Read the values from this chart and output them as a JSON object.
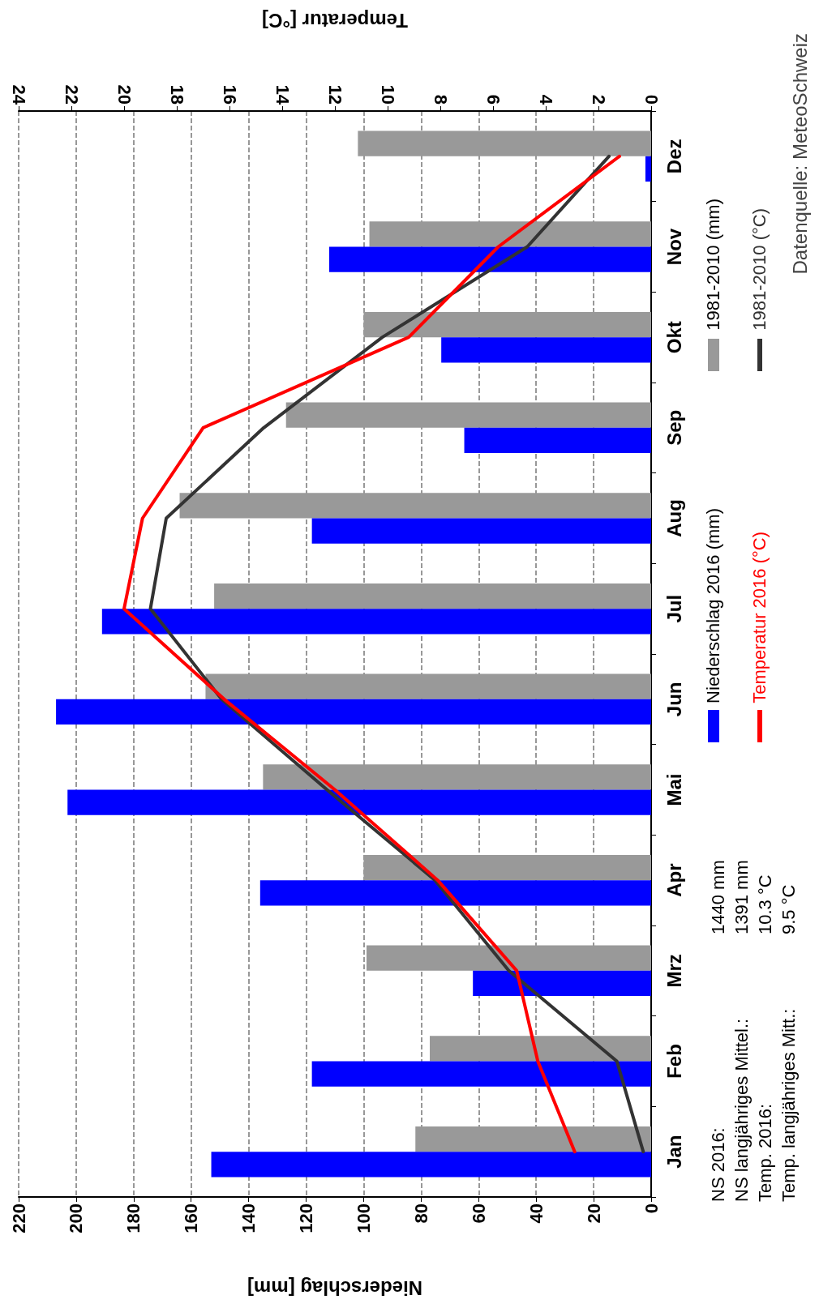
{
  "chart_data": {
    "type": "bar",
    "orientation": "horizontal",
    "categories": [
      "Dez",
      "Nov",
      "Okt",
      "Sep",
      "Aug",
      "Jul",
      "Jun",
      "Mai",
      "Apr",
      "Mrz",
      "Feb",
      "Jan"
    ],
    "xlabel": "Niederschlag [mm]",
    "x2label": "Temperatur [°C]",
    "xlim": [
      220,
      0
    ],
    "xticks": [
      0,
      20,
      40,
      60,
      80,
      100,
      120,
      140,
      160,
      180,
      200,
      220
    ],
    "x2lim": [
      24,
      0
    ],
    "x2ticks": [
      0,
      2,
      4,
      6,
      8,
      10,
      12,
      14,
      16,
      18,
      20,
      22,
      24
    ],
    "grid": "x",
    "legend": "right",
    "marker": "none",
    "line_style": "solid",
    "annotations": [
      "NS 2016:",
      "1440 mm",
      "NS langjähriges Mittel.:",
      "1391 mm",
      "Temp. 2016:",
      "10.3 °C",
      "Temp. langjähriges Mitt.:",
      "9.5 °C",
      "Datenquelle: MeteoSchweiz"
    ],
    "series": [
      {
        "name": "1981-2010 (mm)",
        "type": "bar",
        "color": "#999999",
        "values": [
          102,
          98,
          100,
          127,
          164,
          152,
          155,
          135,
          100,
          99,
          77,
          82
        ]
      },
      {
        "name": "Niederschlag 2016 (mm)",
        "type": "bar",
        "color": "#0000ff",
        "values": [
          2,
          112,
          73,
          65,
          118,
          191,
          207,
          203,
          136,
          62,
          118,
          153
        ]
      },
      {
        "name": "1981-2010 (°C)",
        "type": "line",
        "axis": "x2",
        "color": "#333333",
        "values": [
          1.6,
          4.7,
          10.2,
          14.7,
          18.4,
          19.0,
          16.3,
          12.3,
          8.2,
          5.4,
          1.3,
          0.3
        ]
      },
      {
        "name": "Temperatur 2016 (°C)",
        "type": "line",
        "axis": "x2",
        "color": "#ff0000",
        "values": [
          1.2,
          5.8,
          9.2,
          17.0,
          19.3,
          20.0,
          16.2,
          12.0,
          8.1,
          5.1,
          4.3,
          2.9
        ]
      }
    ]
  }
}
